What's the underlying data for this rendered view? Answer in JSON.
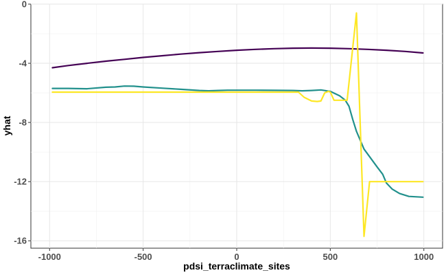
{
  "chart_data": {
    "type": "line",
    "xlabel": "pdsi_terraclimate_sites",
    "ylabel": "yhat",
    "xlim": [
      -1100,
      1100
    ],
    "ylim": [
      -16.5,
      0
    ],
    "x_ticks": [
      -1000,
      -500,
      0,
      500,
      1000
    ],
    "x_tick_labels": [
      "-1000",
      "-500",
      "0",
      "500",
      "1000"
    ],
    "y_ticks": [
      0,
      -4,
      -8,
      -12,
      -16
    ],
    "y_tick_labels": [
      "0",
      "-4",
      "-8",
      "-12",
      "-16"
    ],
    "grid": true,
    "legend": "none",
    "series": [
      {
        "color": "#440154",
        "x": [
          -985,
          -900,
          -800,
          -700,
          -600,
          -500,
          -400,
          -300,
          -200,
          -100,
          0,
          100,
          200,
          300,
          400,
          500,
          600,
          700,
          800,
          900,
          995
        ],
        "y": [
          -4.3,
          -4.15,
          -4.0,
          -3.86,
          -3.73,
          -3.6,
          -3.49,
          -3.38,
          -3.28,
          -3.2,
          -3.12,
          -3.06,
          -3.01,
          -2.98,
          -2.97,
          -2.98,
          -3.01,
          -3.06,
          -3.12,
          -3.2,
          -3.3
        ]
      },
      {
        "color": "#21908C",
        "x": [
          -985,
          -900,
          -800,
          -700,
          -650,
          -600,
          -550,
          -500,
          -400,
          -300,
          -200,
          -150,
          -100,
          -50,
          0,
          100,
          200,
          300,
          350,
          400,
          450,
          500,
          550,
          580,
          600,
          620,
          640,
          680,
          750,
          780,
          800,
          830,
          870,
          920,
          995
        ],
        "y": [
          -5.7,
          -5.7,
          -5.72,
          -5.62,
          -5.6,
          -5.54,
          -5.55,
          -5.6,
          -5.68,
          -5.76,
          -5.84,
          -5.86,
          -5.84,
          -5.82,
          -5.82,
          -5.82,
          -5.83,
          -5.84,
          -5.86,
          -5.84,
          -5.8,
          -5.9,
          -6.2,
          -6.5,
          -6.9,
          -7.8,
          -8.6,
          -9.8,
          -11.0,
          -11.5,
          -12.1,
          -12.5,
          -12.8,
          -13.0,
          -13.05
        ]
      },
      {
        "color": "#FDE725",
        "x": [
          -985,
          330,
          360,
          400,
          430,
          450,
          470,
          490,
          500,
          520,
          560,
          590,
          640,
          680,
          710,
          800,
          900,
          995
        ],
        "y": [
          -5.95,
          -5.95,
          -6.3,
          -6.55,
          -6.58,
          -6.55,
          -6.0,
          -5.9,
          -5.95,
          -6.5,
          -6.5,
          -6.5,
          -0.6,
          -15.7,
          -12.0,
          -12.0,
          -12.0,
          -12.0
        ]
      }
    ]
  }
}
